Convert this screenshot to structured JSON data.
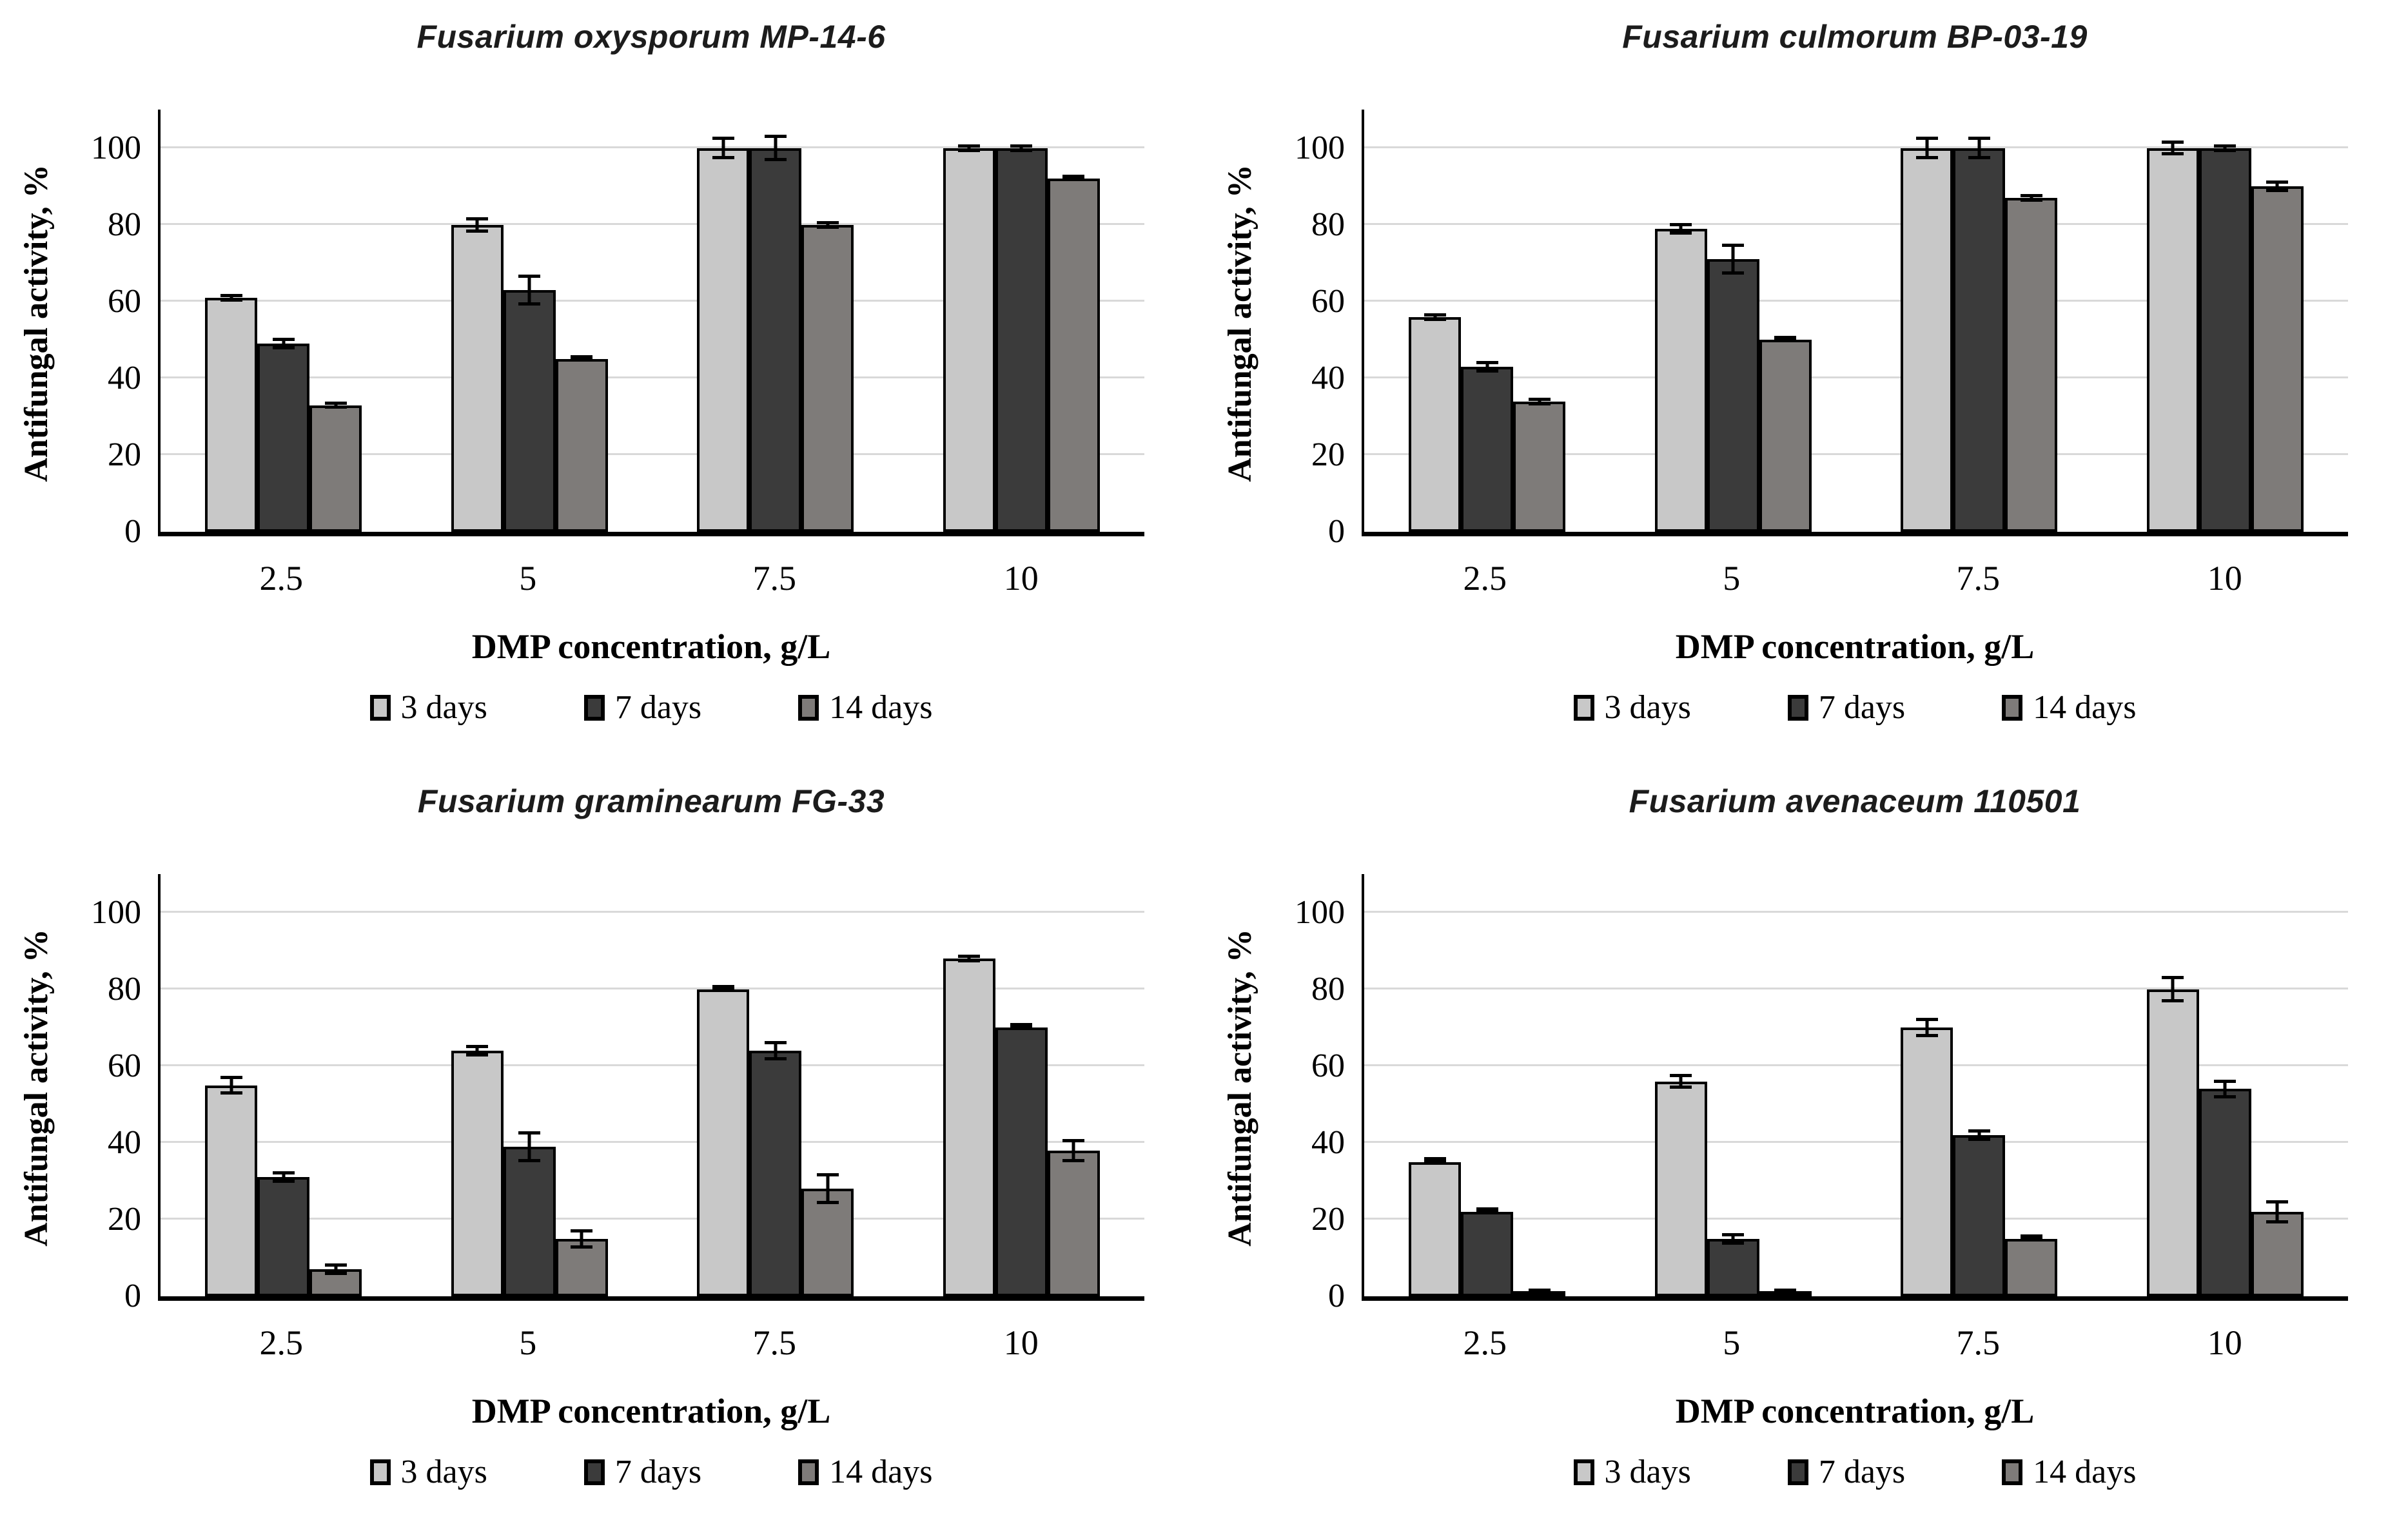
{
  "colors": {
    "series_3_days": "#c8c8c8",
    "series_7_days": "#3b3b3b",
    "series_14_days": "#7e7b79",
    "gridline": "#d9d9d9",
    "axis": "#000000",
    "bar_border": "#000000"
  },
  "legend_labels": [
    "3 days",
    "7 days",
    "14 days"
  ],
  "chart_data": [
    {
      "type": "bar",
      "title": "Fusarium oxysporum MP-14-6",
      "xlabel": "DMP concentration, g/L",
      "ylabel": "Antifungal activity, %",
      "categories": [
        "2.5",
        "5",
        "7.5",
        "10"
      ],
      "yticks": [
        0,
        20,
        40,
        60,
        80,
        100
      ],
      "ylim": [
        0,
        110
      ],
      "grid": true,
      "legend_position": "bottom",
      "series": [
        {
          "name": "3 days",
          "color": "#c8c8c8",
          "values": [
            61,
            80,
            100,
            100
          ],
          "errors": [
            1,
            2,
            3,
            1
          ]
        },
        {
          "name": "7 days",
          "color": "#3b3b3b",
          "values": [
            49,
            63,
            100,
            100
          ],
          "errors": [
            1.5,
            4,
            3.5,
            1
          ]
        },
        {
          "name": "14 days",
          "color": "#7e7b79",
          "values": [
            33,
            45,
            80,
            92
          ],
          "errors": [
            1,
            0.7,
            1,
            0.7
          ]
        }
      ]
    },
    {
      "type": "bar",
      "title": "Fusarium culmorum BP-03-19",
      "xlabel": "DMP concentration, g/L",
      "ylabel": "Antifungal activity, %",
      "categories": [
        "2.5",
        "5",
        "7.5",
        "10"
      ],
      "yticks": [
        0,
        20,
        40,
        60,
        80,
        100
      ],
      "ylim": [
        0,
        110
      ],
      "grid": true,
      "legend_position": "bottom",
      "series": [
        {
          "name": "3 days",
          "color": "#c8c8c8",
          "values": [
            56,
            79,
            100,
            100
          ],
          "errors": [
            1,
            1.5,
            3,
            2
          ]
        },
        {
          "name": "7 days",
          "color": "#3b3b3b",
          "values": [
            43,
            71,
            100,
            100
          ],
          "errors": [
            1.5,
            4,
            3,
            1
          ]
        },
        {
          "name": "14 days",
          "color": "#7e7b79",
          "values": [
            34,
            50,
            87,
            90
          ],
          "errors": [
            1,
            0.7,
            1,
            1.5
          ]
        }
      ]
    },
    {
      "type": "bar",
      "title": "Fusarium graminearum FG-33",
      "xlabel": "DMP concentration, g/L",
      "ylabel": "Antifungal activity, %",
      "categories": [
        "2.5",
        "5",
        "7.5",
        "10"
      ],
      "yticks": [
        0,
        20,
        40,
        60,
        80,
        100
      ],
      "ylim": [
        0,
        110
      ],
      "grid": true,
      "legend_position": "bottom",
      "series": [
        {
          "name": "3 days",
          "color": "#c8c8c8",
          "values": [
            55,
            64,
            80,
            88
          ],
          "errors": [
            2.5,
            1.5,
            0.5,
            1
          ]
        },
        {
          "name": "7 days",
          "color": "#3b3b3b",
          "values": [
            31,
            39,
            64,
            70
          ],
          "errors": [
            1.5,
            4,
            2.5,
            0.5
          ]
        },
        {
          "name": "14 days",
          "color": "#7e7b79",
          "values": [
            7,
            15,
            28,
            38
          ],
          "errors": [
            1.5,
            2.5,
            4,
            3
          ]
        }
      ]
    },
    {
      "type": "bar",
      "title": "Fusarium avenaceum 110501",
      "xlabel": "DMP concentration, g/L",
      "ylabel": "Antifungal activity, %",
      "categories": [
        "2.5",
        "5",
        "7.5",
        "10"
      ],
      "yticks": [
        0,
        20,
        40,
        60,
        80,
        100
      ],
      "ylim": [
        0,
        110
      ],
      "grid": true,
      "legend_position": "bottom",
      "series": [
        {
          "name": "3 days",
          "color": "#c8c8c8",
          "values": [
            35,
            56,
            70,
            80
          ],
          "errors": [
            0.4,
            2,
            2.5,
            3.5
          ]
        },
        {
          "name": "7 days",
          "color": "#3b3b3b",
          "values": [
            22,
            15,
            42,
            54
          ],
          "errors": [
            0.5,
            1.5,
            1.5,
            2.5
          ]
        },
        {
          "name": "14 days",
          "color": "#7e7b79",
          "values": [
            0.5,
            0.5,
            15,
            22
          ],
          "errors": [
            0.2,
            0.2,
            0.5,
            3
          ]
        }
      ]
    }
  ]
}
